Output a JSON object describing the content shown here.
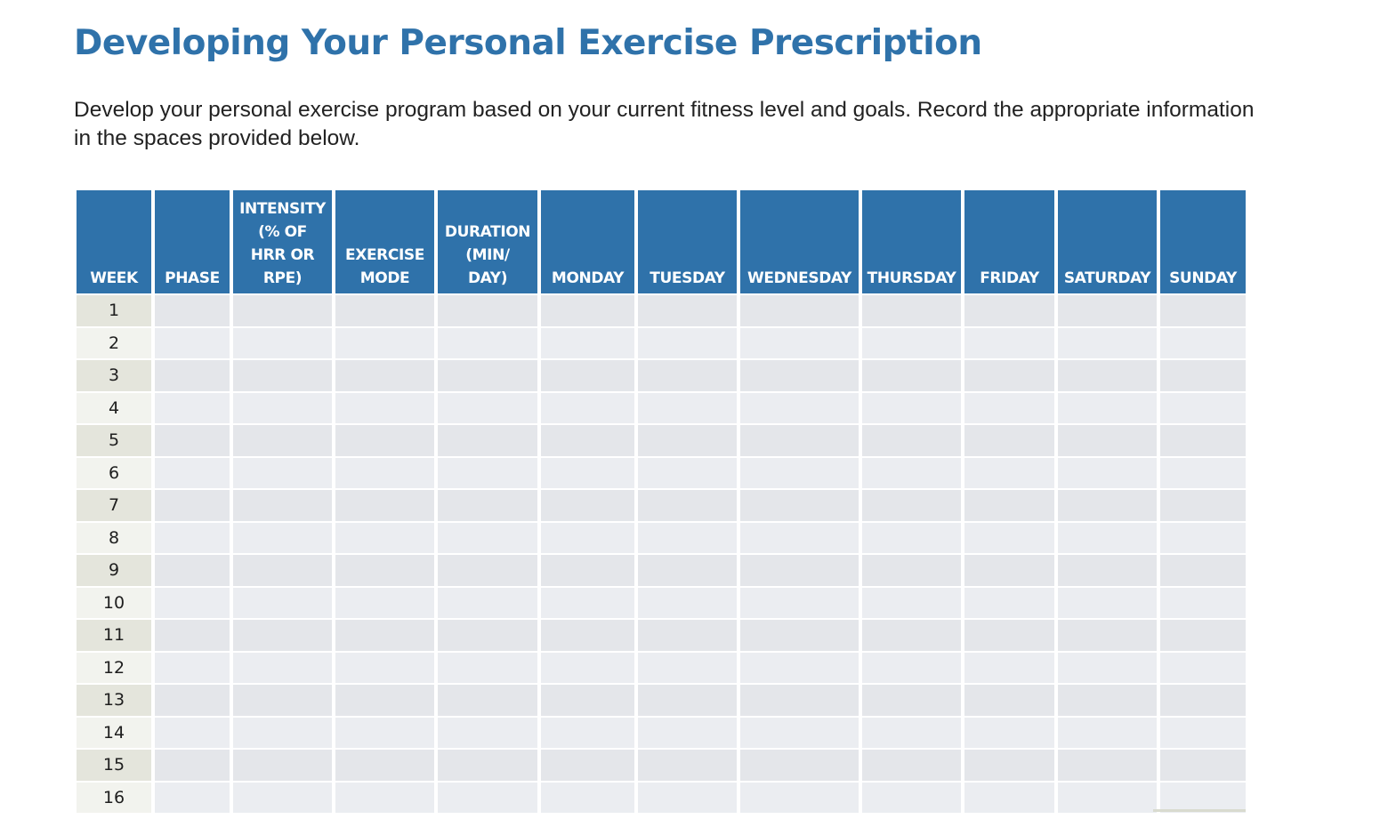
{
  "title": "Developing Your Personal Exercise Prescription",
  "intro": "Develop your personal exercise program based on your current fitness level and goals. Record the appropriate information in the spaces provided below.",
  "table": {
    "headers": [
      "WEEK",
      "PHASE",
      "INTENSITY\n(% OF\nHRR OR\nRPE)",
      "EXERCISE\nMODE",
      "DURATION\n(MIN/\nDAY)",
      "MONDAY",
      "TUESDAY",
      "WEDNESDAY",
      "THURSDAY",
      "FRIDAY",
      "SATURDAY",
      "SUNDAY"
    ],
    "weeks": [
      "1",
      "2",
      "3",
      "4",
      "5",
      "6",
      "7",
      "8",
      "9",
      "10",
      "11",
      "12",
      "13",
      "14",
      "15",
      "16"
    ]
  },
  "colors": {
    "title": "#2f72aa",
    "header_bg": "#2f72aa",
    "header_text": "#ffffff"
  }
}
